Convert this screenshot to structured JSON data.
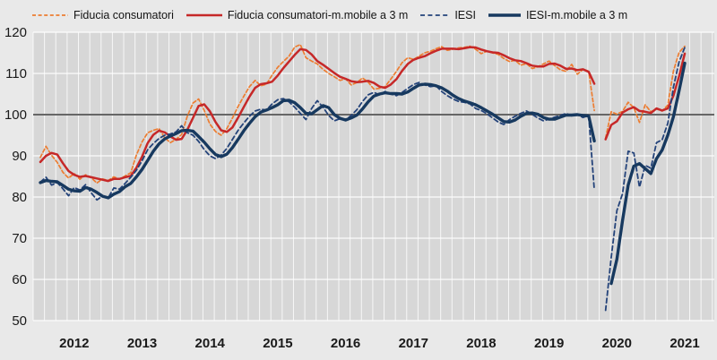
{
  "legend_note": "legend labels come from chart_data.series names",
  "colors": {
    "page_background": "#e9e9e9",
    "plot_background": "#d7d7d7",
    "gridline": "#ffffff",
    "reference_line": "#666666",
    "consumer_monthly": "#ED7D31",
    "consumer_ma": "#C62828",
    "iesi_monthly": "#24437A",
    "iesi_ma": "#17395F",
    "tick_text": "#1a1a1a"
  },
  "chart_data": {
    "type": "line",
    "title": "",
    "xlabel": "",
    "ylabel": "",
    "ylim": [
      50,
      120
    ],
    "y_ticks": [
      120,
      110,
      100,
      90,
      80,
      70,
      60,
      50
    ],
    "x_tick_labels": [
      "2012",
      "2013",
      "2014",
      "2015",
      "2016",
      "2017",
      "2018",
      "2019",
      "2020",
      "2021"
    ],
    "x_period": "monthly, Jan 2012 - Jul 2021",
    "gap_note": "null = April 2020 survey suspension gap",
    "reference_line": 100,
    "grid": "on",
    "legend_position": "top",
    "series": [
      {
        "id": "cc",
        "name": "Fiducia consumatori",
        "color": "#ED7D31",
        "line_style": "dashed",
        "width": 1.7,
        "values": [
          89.6,
          92.3,
          90.1,
          88.4,
          86.0,
          84.6,
          85.7,
          84.3,
          85.4,
          84.7,
          83.4,
          84.4,
          84.0,
          84.9,
          84.3,
          85.1,
          85.9,
          90.2,
          93.4,
          95.6,
          96.2,
          96.6,
          94.4,
          93.2,
          94.0,
          95.2,
          99.6,
          102.8,
          103.8,
          101.0,
          97.7,
          95.9,
          95.0,
          96.6,
          99.2,
          102.0,
          104.5,
          106.8,
          108.3,
          107.0,
          107.4,
          109.6,
          111.5,
          112.9,
          114.2,
          116.4,
          117.0,
          113.8,
          113.0,
          112.3,
          111.0,
          110.0,
          109.2,
          108.3,
          108.7,
          107.2,
          107.8,
          108.9,
          107.9,
          106.2,
          106.4,
          106.8,
          108.6,
          110.5,
          112.6,
          113.8,
          113.4,
          114.2,
          115.0,
          115.4,
          116.0,
          116.5,
          115.6,
          115.9,
          116.2,
          116.3,
          116.6,
          115.9,
          114.8,
          115.4,
          115.0,
          114.6,
          113.6,
          112.9,
          113.2,
          112.0,
          112.4,
          111.2,
          111.6,
          112.3,
          113.0,
          111.9,
          110.9,
          110.5,
          112.2,
          109.8,
          111.0,
          110.5,
          101.0,
          null,
          94.3,
          100.7,
          100.1,
          100.8,
          103.0,
          101.7,
          98.1,
          102.4,
          100.7,
          101.4,
          100.9,
          102.3,
          110.6,
          115.1,
          116.6
        ]
      },
      {
        "id": "cc_ma",
        "name": "Fiducia consumatori-m.mobile a 3 m",
        "color": "#C62828",
        "line_style": "solid",
        "width": 2.5,
        "values": [
          88.5,
          90.0,
          90.7,
          90.3,
          88.2,
          86.3,
          85.4,
          84.9,
          85.1,
          84.8,
          84.5,
          84.2,
          83.9,
          84.4,
          84.4,
          84.8,
          85.1,
          87.1,
          89.8,
          93.1,
          95.1,
          96.1,
          95.7,
          94.7,
          93.9,
          94.1,
          96.3,
          99.2,
          102.1,
          102.5,
          100.8,
          98.2,
          96.2,
          95.8,
          96.9,
          99.3,
          101.9,
          104.4,
          106.5,
          107.4,
          107.6,
          108.0,
          109.5,
          111.3,
          112.9,
          114.5,
          115.9,
          115.7,
          114.6,
          113.0,
          112.1,
          111.1,
          110.1,
          109.2,
          108.7,
          108.1,
          107.9,
          108.0,
          108.2,
          107.7,
          106.8,
          106.5,
          107.3,
          108.6,
          110.6,
          112.3,
          113.3,
          113.8,
          114.2,
          114.9,
          115.5,
          116.0,
          116.0,
          116.0,
          115.9,
          116.1,
          116.4,
          116.3,
          115.8,
          115.4,
          115.1,
          115.0,
          114.4,
          113.7,
          113.2,
          113.0,
          112.5,
          111.9,
          111.7,
          111.7,
          112.3,
          112.4,
          111.9,
          111.1,
          111.2,
          110.8,
          111.0,
          110.4,
          107.5,
          null,
          94.0,
          97.5,
          98.4,
          100.5,
          101.3,
          101.8,
          100.9,
          100.7,
          100.4,
          101.5,
          101.0,
          101.5,
          104.6,
          109.3,
          114.8
        ]
      },
      {
        "id": "iesi",
        "name": "IESI",
        "color": "#24437A",
        "line_style": "dashed",
        "width": 1.8,
        "values": [
          83.6,
          84.8,
          82.9,
          83.5,
          82.0,
          80.3,
          82.3,
          81.7,
          83.0,
          81.0,
          79.3,
          80.2,
          79.8,
          82.2,
          81.9,
          83.3,
          84.8,
          86.5,
          88.8,
          91.5,
          93.0,
          94.2,
          95.0,
          95.3,
          95.8,
          97.3,
          95.6,
          95.0,
          93.5,
          91.5,
          90.0,
          89.3,
          90.2,
          91.8,
          94.0,
          96.2,
          98.0,
          99.6,
          100.9,
          101.3,
          101.1,
          102.6,
          103.6,
          103.9,
          103.1,
          101.8,
          100.3,
          98.8,
          101.5,
          103.4,
          101.8,
          99.8,
          98.5,
          99.0,
          98.7,
          99.8,
          101.2,
          103.2,
          104.8,
          105.4,
          104.8,
          105.6,
          105.0,
          104.6,
          105.4,
          106.4,
          107.3,
          107.8,
          107.2,
          106.8,
          107.0,
          105.6,
          104.6,
          103.8,
          103.2,
          103.0,
          102.6,
          101.5,
          101.0,
          100.2,
          99.2,
          98.2,
          97.6,
          98.8,
          99.6,
          100.3,
          100.9,
          100.1,
          99.2,
          98.5,
          98.9,
          99.4,
          99.8,
          100.3,
          99.7,
          100.0,
          99.3,
          99.8,
          81.7,
          null,
          52.5,
          65.4,
          76.7,
          80.8,
          91.1,
          90.7,
          82.4,
          87.7,
          87.0,
          93.2,
          93.9,
          97.9,
          106.7,
          112.8,
          116.3
        ]
      },
      {
        "id": "iesi_ma",
        "name": "IESI-m.mobile a 3 m",
        "color": "#17395F",
        "line_style": "solid",
        "width": 3.4,
        "values": [
          83.5,
          84.0,
          83.8,
          83.7,
          82.8,
          81.9,
          81.5,
          81.4,
          82.3,
          81.9,
          81.1,
          80.2,
          79.8,
          80.7,
          81.3,
          82.5,
          83.3,
          84.9,
          86.7,
          88.9,
          91.1,
          92.9,
          94.1,
          94.8,
          95.4,
          96.1,
          96.2,
          96.0,
          94.7,
          93.3,
          91.7,
          90.3,
          89.8,
          90.4,
          92.0,
          94.0,
          96.1,
          97.9,
          99.5,
          100.6,
          101.1,
          101.7,
          102.4,
          103.4,
          103.5,
          102.9,
          101.7,
          100.3,
          100.2,
          101.2,
          102.2,
          101.7,
          100.0,
          99.1,
          98.7,
          99.2,
          99.9,
          101.4,
          103.1,
          104.5,
          105.0,
          105.3,
          105.1,
          105.1,
          105.0,
          105.5,
          106.4,
          107.2,
          107.4,
          107.3,
          107.0,
          106.5,
          105.7,
          104.7,
          103.9,
          103.3,
          102.9,
          102.4,
          101.7,
          100.9,
          100.1,
          99.2,
          98.3,
          98.2,
          98.7,
          99.6,
          100.3,
          100.4,
          100.1,
          99.3,
          98.9,
          98.9,
          99.4,
          99.9,
          99.9,
          100.0,
          99.8,
          99.7,
          93.6,
          null,
          null,
          59.0,
          64.9,
          74.3,
          82.9,
          87.5,
          88.1,
          86.9,
          85.7,
          89.3,
          91.4,
          95.0,
          99.5,
          105.8,
          112.5
        ]
      }
    ]
  }
}
